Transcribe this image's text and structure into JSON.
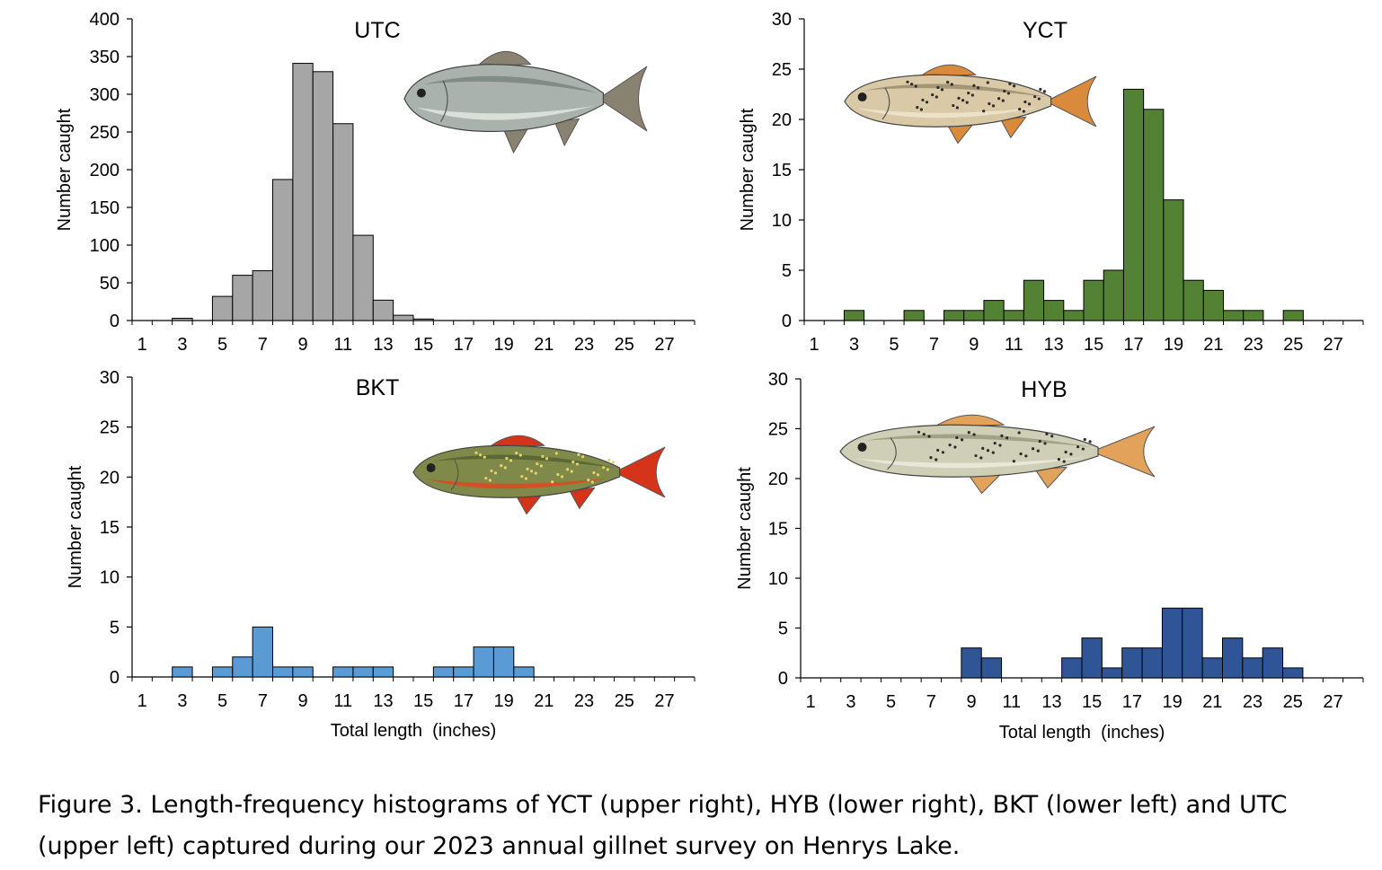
{
  "chart_data": [
    {
      "type": "bar",
      "title": "UTC",
      "xlabel": "",
      "ylabel": "Number caught",
      "ylim": [
        0,
        400
      ],
      "ytick_step": 50,
      "bar_color": "#a6a6a6",
      "x": [
        1,
        2,
        3,
        4,
        5,
        6,
        7,
        8,
        9,
        10,
        11,
        12,
        13,
        14,
        15,
        16,
        17,
        18,
        19,
        20,
        21,
        22,
        23,
        24,
        25,
        26,
        27,
        28
      ],
      "values": [
        0,
        0,
        3,
        0,
        32,
        60,
        66,
        187,
        341,
        330,
        261,
        113,
        27,
        7,
        2,
        0,
        0,
        0,
        0,
        0,
        0,
        0,
        0,
        0,
        0,
        0,
        0,
        0
      ],
      "xtick_labels": [
        "1",
        "3",
        "5",
        "7",
        "9",
        "11",
        "13",
        "15",
        "17",
        "19",
        "21",
        "23",
        "25",
        "27"
      ],
      "fish": "mountain-whitefish-like chub"
    },
    {
      "type": "bar",
      "title": "YCT",
      "xlabel": "",
      "ylabel": "Number caught",
      "ylim": [
        0,
        30
      ],
      "ytick_step": 5,
      "bar_color": "#548235",
      "x": [
        1,
        2,
        3,
        4,
        5,
        6,
        7,
        8,
        9,
        10,
        11,
        12,
        13,
        14,
        15,
        16,
        17,
        18,
        19,
        20,
        21,
        22,
        23,
        24,
        25,
        26,
        27,
        28
      ],
      "values": [
        0,
        0,
        1,
        0,
        0,
        1,
        0,
        1,
        1,
        2,
        1,
        4,
        2,
        1,
        4,
        5,
        23,
        21,
        12,
        4,
        3,
        1,
        1,
        0,
        1,
        0,
        0,
        0
      ],
      "xtick_labels": [
        "1",
        "3",
        "5",
        "7",
        "9",
        "11",
        "13",
        "15",
        "17",
        "19",
        "21",
        "23",
        "25",
        "27"
      ],
      "fish": "cutthroat trout"
    },
    {
      "type": "bar",
      "title": "BKT",
      "xlabel": "Total length  (inches)",
      "ylabel": "Number caught",
      "ylim": [
        0,
        30
      ],
      "ytick_step": 5,
      "bar_color": "#5b9bd5",
      "x": [
        1,
        2,
        3,
        4,
        5,
        6,
        7,
        8,
        9,
        10,
        11,
        12,
        13,
        14,
        15,
        16,
        17,
        18,
        19,
        20,
        21,
        22,
        23,
        24,
        25,
        26,
        27,
        28
      ],
      "values": [
        0,
        0,
        1,
        0,
        1,
        2,
        5,
        1,
        1,
        0,
        1,
        1,
        1,
        0,
        0,
        1,
        1,
        3,
        3,
        1,
        0,
        0,
        0,
        0,
        0,
        0,
        0,
        0
      ],
      "xtick_labels": [
        "1",
        "3",
        "5",
        "7",
        "9",
        "11",
        "13",
        "15",
        "17",
        "19",
        "21",
        "23",
        "25",
        "27"
      ],
      "fish": "brook trout"
    },
    {
      "type": "bar",
      "title": "HYB",
      "xlabel": "Total length  (inches)",
      "ylabel": "Number caught",
      "ylim": [
        0,
        30
      ],
      "ytick_step": 5,
      "bar_color": "#2f5597",
      "x": [
        1,
        2,
        3,
        4,
        5,
        6,
        7,
        8,
        9,
        10,
        11,
        12,
        13,
        14,
        15,
        16,
        17,
        18,
        19,
        20,
        21,
        22,
        23,
        24,
        25,
        26,
        27,
        28
      ],
      "values": [
        0,
        0,
        0,
        0,
        0,
        0,
        0,
        0,
        3,
        2,
        0,
        0,
        0,
        2,
        4,
        1,
        3,
        3,
        7,
        7,
        2,
        4,
        2,
        3,
        1,
        0,
        0,
        0
      ],
      "xtick_labels": [
        "1",
        "3",
        "5",
        "7",
        "9",
        "11",
        "13",
        "15",
        "17",
        "19",
        "21",
        "23",
        "25",
        "27"
      ],
      "fish": "hybrid trout"
    }
  ],
  "caption": {
    "line1": "Figure 3. Length-frequency histograms of YCT (upper right), HYB (lower right), BKT (lower left) and UTC",
    "line2": "(upper left) captured during our 2023 annual gillnet survey on Henrys Lake."
  }
}
